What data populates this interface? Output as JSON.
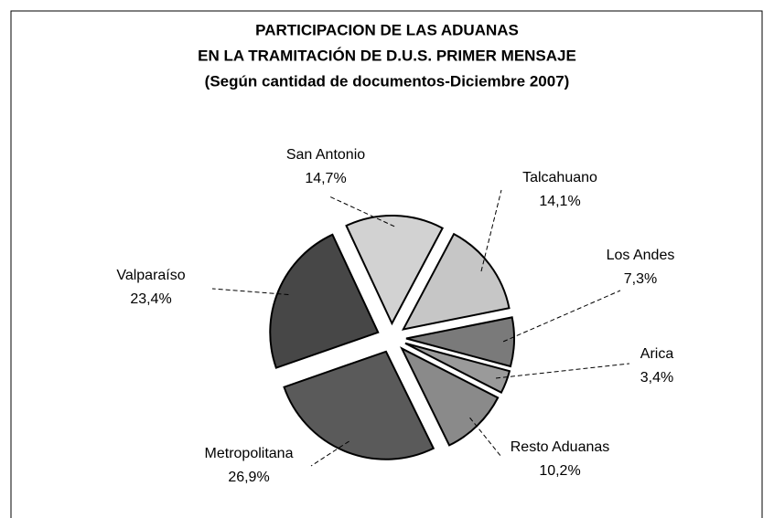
{
  "chart_data": {
    "type": "pie",
    "title": [
      "PARTICIPACION DE LAS ADUANAS",
      "EN LA TRAMITACIÓN DE D.U.S. PRIMER MENSAJE"
    ],
    "subtitle": "(Según cantidad de documentos-Diciembre 2007)",
    "categories": [
      "San Antonio",
      "Talcahuano",
      "Los Andes",
      "Arica",
      "Resto Aduanas",
      "Metropolitana",
      "Valparaíso"
    ],
    "values": [
      14.7,
      14.1,
      7.3,
      3.4,
      10.2,
      26.9,
      23.4
    ],
    "value_labels": [
      "14,7%",
      "14,1%",
      "7,3%",
      "3,4%",
      "10,2%",
      "26,9%",
      "23,4%"
    ],
    "colors": [
      "#d2d2d2",
      "#c6c6c6",
      "#7a7a7a",
      "#9a9a9a",
      "#8a8a8a",
      "#5a5a5a",
      "#474747"
    ]
  }
}
